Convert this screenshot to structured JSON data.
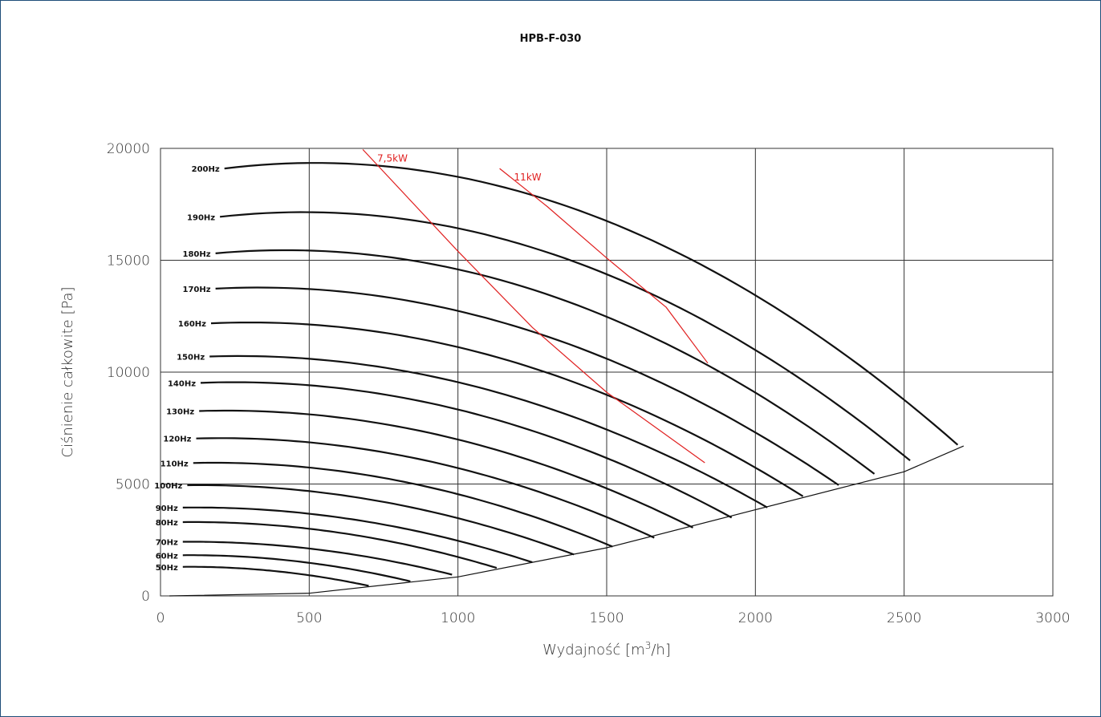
{
  "chart_data": {
    "type": "line",
    "title": "HPB-F-030",
    "xlabel_main": "Wydajność [m",
    "xlabel_sup": "3",
    "xlabel_tail": "/h]",
    "ylabel": "Ciśnienie całkowite [Pa]",
    "xlim": [
      0,
      3000
    ],
    "ylim": [
      0,
      20000
    ],
    "xticks": [
      0,
      500,
      1000,
      1500,
      2000,
      2500,
      3000
    ],
    "yticks": [
      0,
      5000,
      10000,
      15000,
      20000
    ],
    "grid": true,
    "colors": {
      "curves": "#111111",
      "power": "#e02020",
      "grid": "#333333"
    },
    "series": [
      {
        "name": "200Hz",
        "xs": 215,
        "xe": 2680,
        "peak_x": 520,
        "peak": 19350,
        "ye": 6750,
        "lx": 150
      },
      {
        "name": "190Hz",
        "xs": 200,
        "xe": 2520,
        "peak_x": 480,
        "peak": 17150,
        "ye": 6050,
        "lx": 150
      },
      {
        "name": "180Hz",
        "xs": 185,
        "xe": 2400,
        "peak_x": 420,
        "peak": 15450,
        "ye": 5450,
        "lx": 140
      },
      {
        "name": "170Hz",
        "xs": 185,
        "xe": 2280,
        "peak_x": 330,
        "peak": 13780,
        "ye": 4950,
        "lx": 140
      },
      {
        "name": "160Hz",
        "xs": 170,
        "xe": 2160,
        "peak_x": 300,
        "peak": 12220,
        "ye": 4450,
        "lx": 130
      },
      {
        "name": "150Hz",
        "xs": 165,
        "xe": 2040,
        "peak_x": 260,
        "peak": 10720,
        "ye": 3950,
        "lx": 120
      },
      {
        "name": "140Hz",
        "xs": 135,
        "xe": 1920,
        "peak_x": 250,
        "peak": 9550,
        "ye": 3500,
        "lx": 105
      },
      {
        "name": "130Hz",
        "xs": 130,
        "xe": 1790,
        "peak_x": 220,
        "peak": 8280,
        "ye": 3050,
        "lx": 100
      },
      {
        "name": "120Hz",
        "xs": 120,
        "xe": 1660,
        "peak_x": 200,
        "peak": 7050,
        "ye": 2600,
        "lx": 90
      },
      {
        "name": "110Hz",
        "xs": 110,
        "xe": 1520,
        "peak_x": 180,
        "peak": 5950,
        "ye": 2200,
        "lx": 80
      },
      {
        "name": "100Hz",
        "xs": 90,
        "xe": 1390,
        "peak_x": 130,
        "peak": 4950,
        "ye": 1850,
        "lx": 80
      },
      {
        "name": "90Hz",
        "xs": 75,
        "xe": 1250,
        "peak_x": 120,
        "peak": 3950,
        "ye": 1500,
        "lx": 80
      },
      {
        "name": "80Hz",
        "xs": 75,
        "xe": 1130,
        "peak_x": 110,
        "peak": 3300,
        "ye": 1250,
        "lx": 80
      },
      {
        "name": "70Hz",
        "xs": 75,
        "xe": 980,
        "peak_x": 100,
        "peak": 2420,
        "ye": 950,
        "lx": 80
      },
      {
        "name": "60Hz",
        "xs": 75,
        "xe": 840,
        "peak_x": 100,
        "peak": 1820,
        "ye": 650,
        "lx": 80
      },
      {
        "name": "50Hz",
        "xs": 75,
        "xe": 700,
        "peak_x": 100,
        "peak": 1300,
        "ye": 450,
        "lx": 80
      }
    ],
    "system_curve": [
      [
        30,
        0
      ],
      [
        500,
        120
      ],
      [
        1000,
        850
      ],
      [
        1500,
        2150
      ],
      [
        2000,
        3850
      ],
      [
        2500,
        5550
      ],
      [
        2700,
        6700
      ]
    ],
    "power_lines": [
      {
        "name": "7,5kW",
        "points": [
          [
            680,
            19950
          ],
          [
            1000,
            15400
          ],
          [
            1250,
            12000
          ],
          [
            1500,
            9100
          ],
          [
            1830,
            5950
          ]
        ]
      },
      {
        "name": "11kW",
        "points": [
          [
            1140,
            19100
          ],
          [
            1300,
            17400
          ],
          [
            1500,
            15100
          ],
          [
            1700,
            12900
          ],
          [
            1840,
            10400
          ]
        ]
      }
    ]
  }
}
